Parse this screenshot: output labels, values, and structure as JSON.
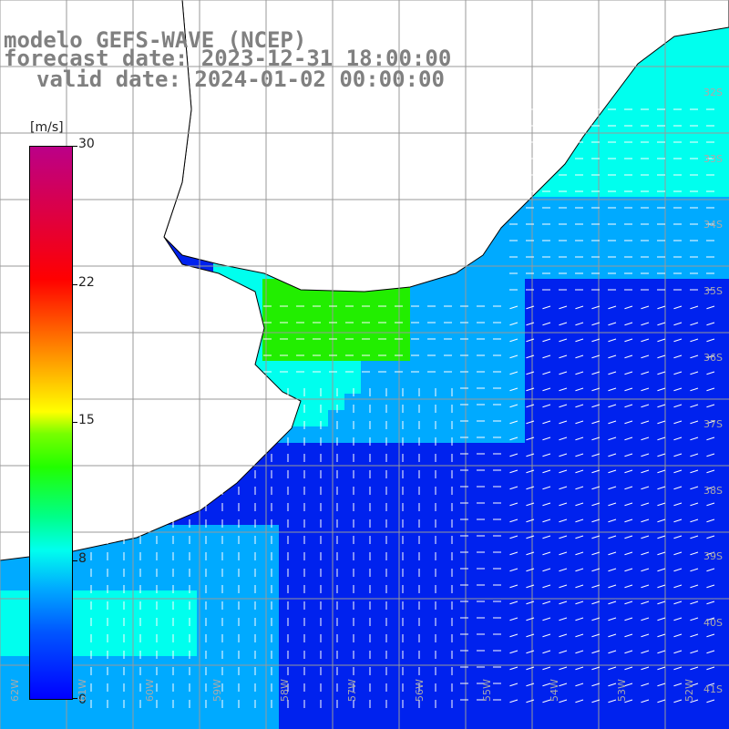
{
  "title": {
    "line1": "modelo GEFS-WAVE (NCEP)",
    "line2": "forecast date: 2023-12-31 18:00:00",
    "line3": "valid date: 2024-01-02 00:00:00"
  },
  "colorbar": {
    "unit": "[m/s]",
    "ticks": [
      "30",
      "22",
      "15",
      "8",
      "0"
    ],
    "min": 0,
    "max": 30,
    "colors": [
      "#0000ff",
      "#00aaff",
      "#00ffee",
      "#22ff00",
      "#ffff00",
      "#ff5500",
      "#ff0000",
      "#bb0088"
    ]
  },
  "lat_labels": [
    "32S",
    "33S",
    "34S",
    "35S",
    "36S",
    "37S",
    "38S",
    "39S",
    "40S",
    "41S"
  ],
  "lon_labels": [
    "62W",
    "61W",
    "60W",
    "59W",
    "58W",
    "57W",
    "56W",
    "55W",
    "54W",
    "53W",
    "52W"
  ],
  "map": {
    "ocean_low": "#0022ee",
    "ocean_mid": "#00aaff",
    "ocean_high": "#00ffee",
    "strong": "#22ee00",
    "land": "#ffffff",
    "grid": "#999999",
    "coast": "#000000",
    "arrow": "#ffffff"
  }
}
